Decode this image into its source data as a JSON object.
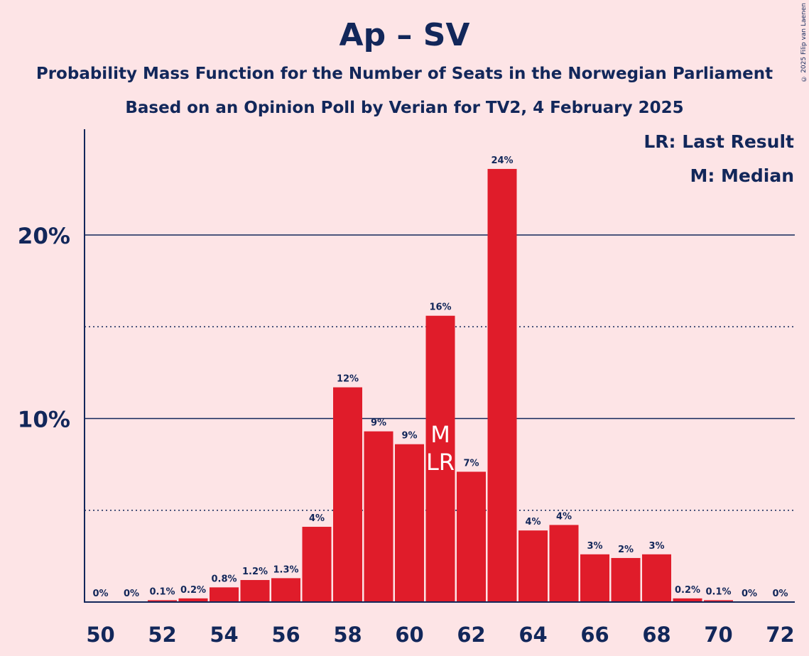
{
  "title": "Ap – SV",
  "subtitle1": "Probability Mass Function for the Number of Seats in the Norwegian Parliament",
  "subtitle2": "Based on an Opinion Poll by Verian for TV2, 4 February 2025",
  "copyright": "© 2025 Filip van Laenen",
  "legend": {
    "lr": "LR: Last Result",
    "m": "M: Median"
  },
  "colors": {
    "background": "#fde4e6",
    "bar": "#e01c2a",
    "text": "#12275a"
  },
  "chart_data": {
    "type": "bar",
    "x": [
      50,
      51,
      52,
      53,
      54,
      55,
      56,
      57,
      58,
      59,
      60,
      61,
      62,
      63,
      64,
      65,
      66,
      67,
      68,
      69,
      70,
      71,
      72
    ],
    "values": [
      0,
      0,
      0.1,
      0.2,
      0.8,
      1.2,
      1.3,
      4.1,
      11.7,
      9.3,
      8.6,
      15.6,
      7.1,
      23.6,
      3.9,
      4.2,
      2.6,
      2.4,
      2.6,
      0.2,
      0.1,
      0,
      0
    ],
    "data_labels": [
      "0%",
      "0%",
      "0.1%",
      "0.2%",
      "0.8%",
      "1.2%",
      "1.3%",
      "4%",
      "12%",
      "9%",
      "9%",
      "16%",
      "7%",
      "24%",
      "4%",
      "4%",
      "3%",
      "2%",
      "3%",
      "0.2%",
      "0.1%",
      "0%",
      "0%"
    ],
    "x_tick_labels": [
      "50",
      "52",
      "54",
      "56",
      "58",
      "60",
      "62",
      "64",
      "66",
      "68",
      "70",
      "72"
    ],
    "y_tick_labels": [
      "10%",
      "20%"
    ],
    "y_major_lines": [
      10,
      20
    ],
    "y_minor_lines": [
      5,
      15
    ],
    "ylim": [
      0,
      25.8
    ],
    "median_seat": 61,
    "last_result_seat": 61,
    "median_marker": "M",
    "last_result_marker": "LR"
  }
}
